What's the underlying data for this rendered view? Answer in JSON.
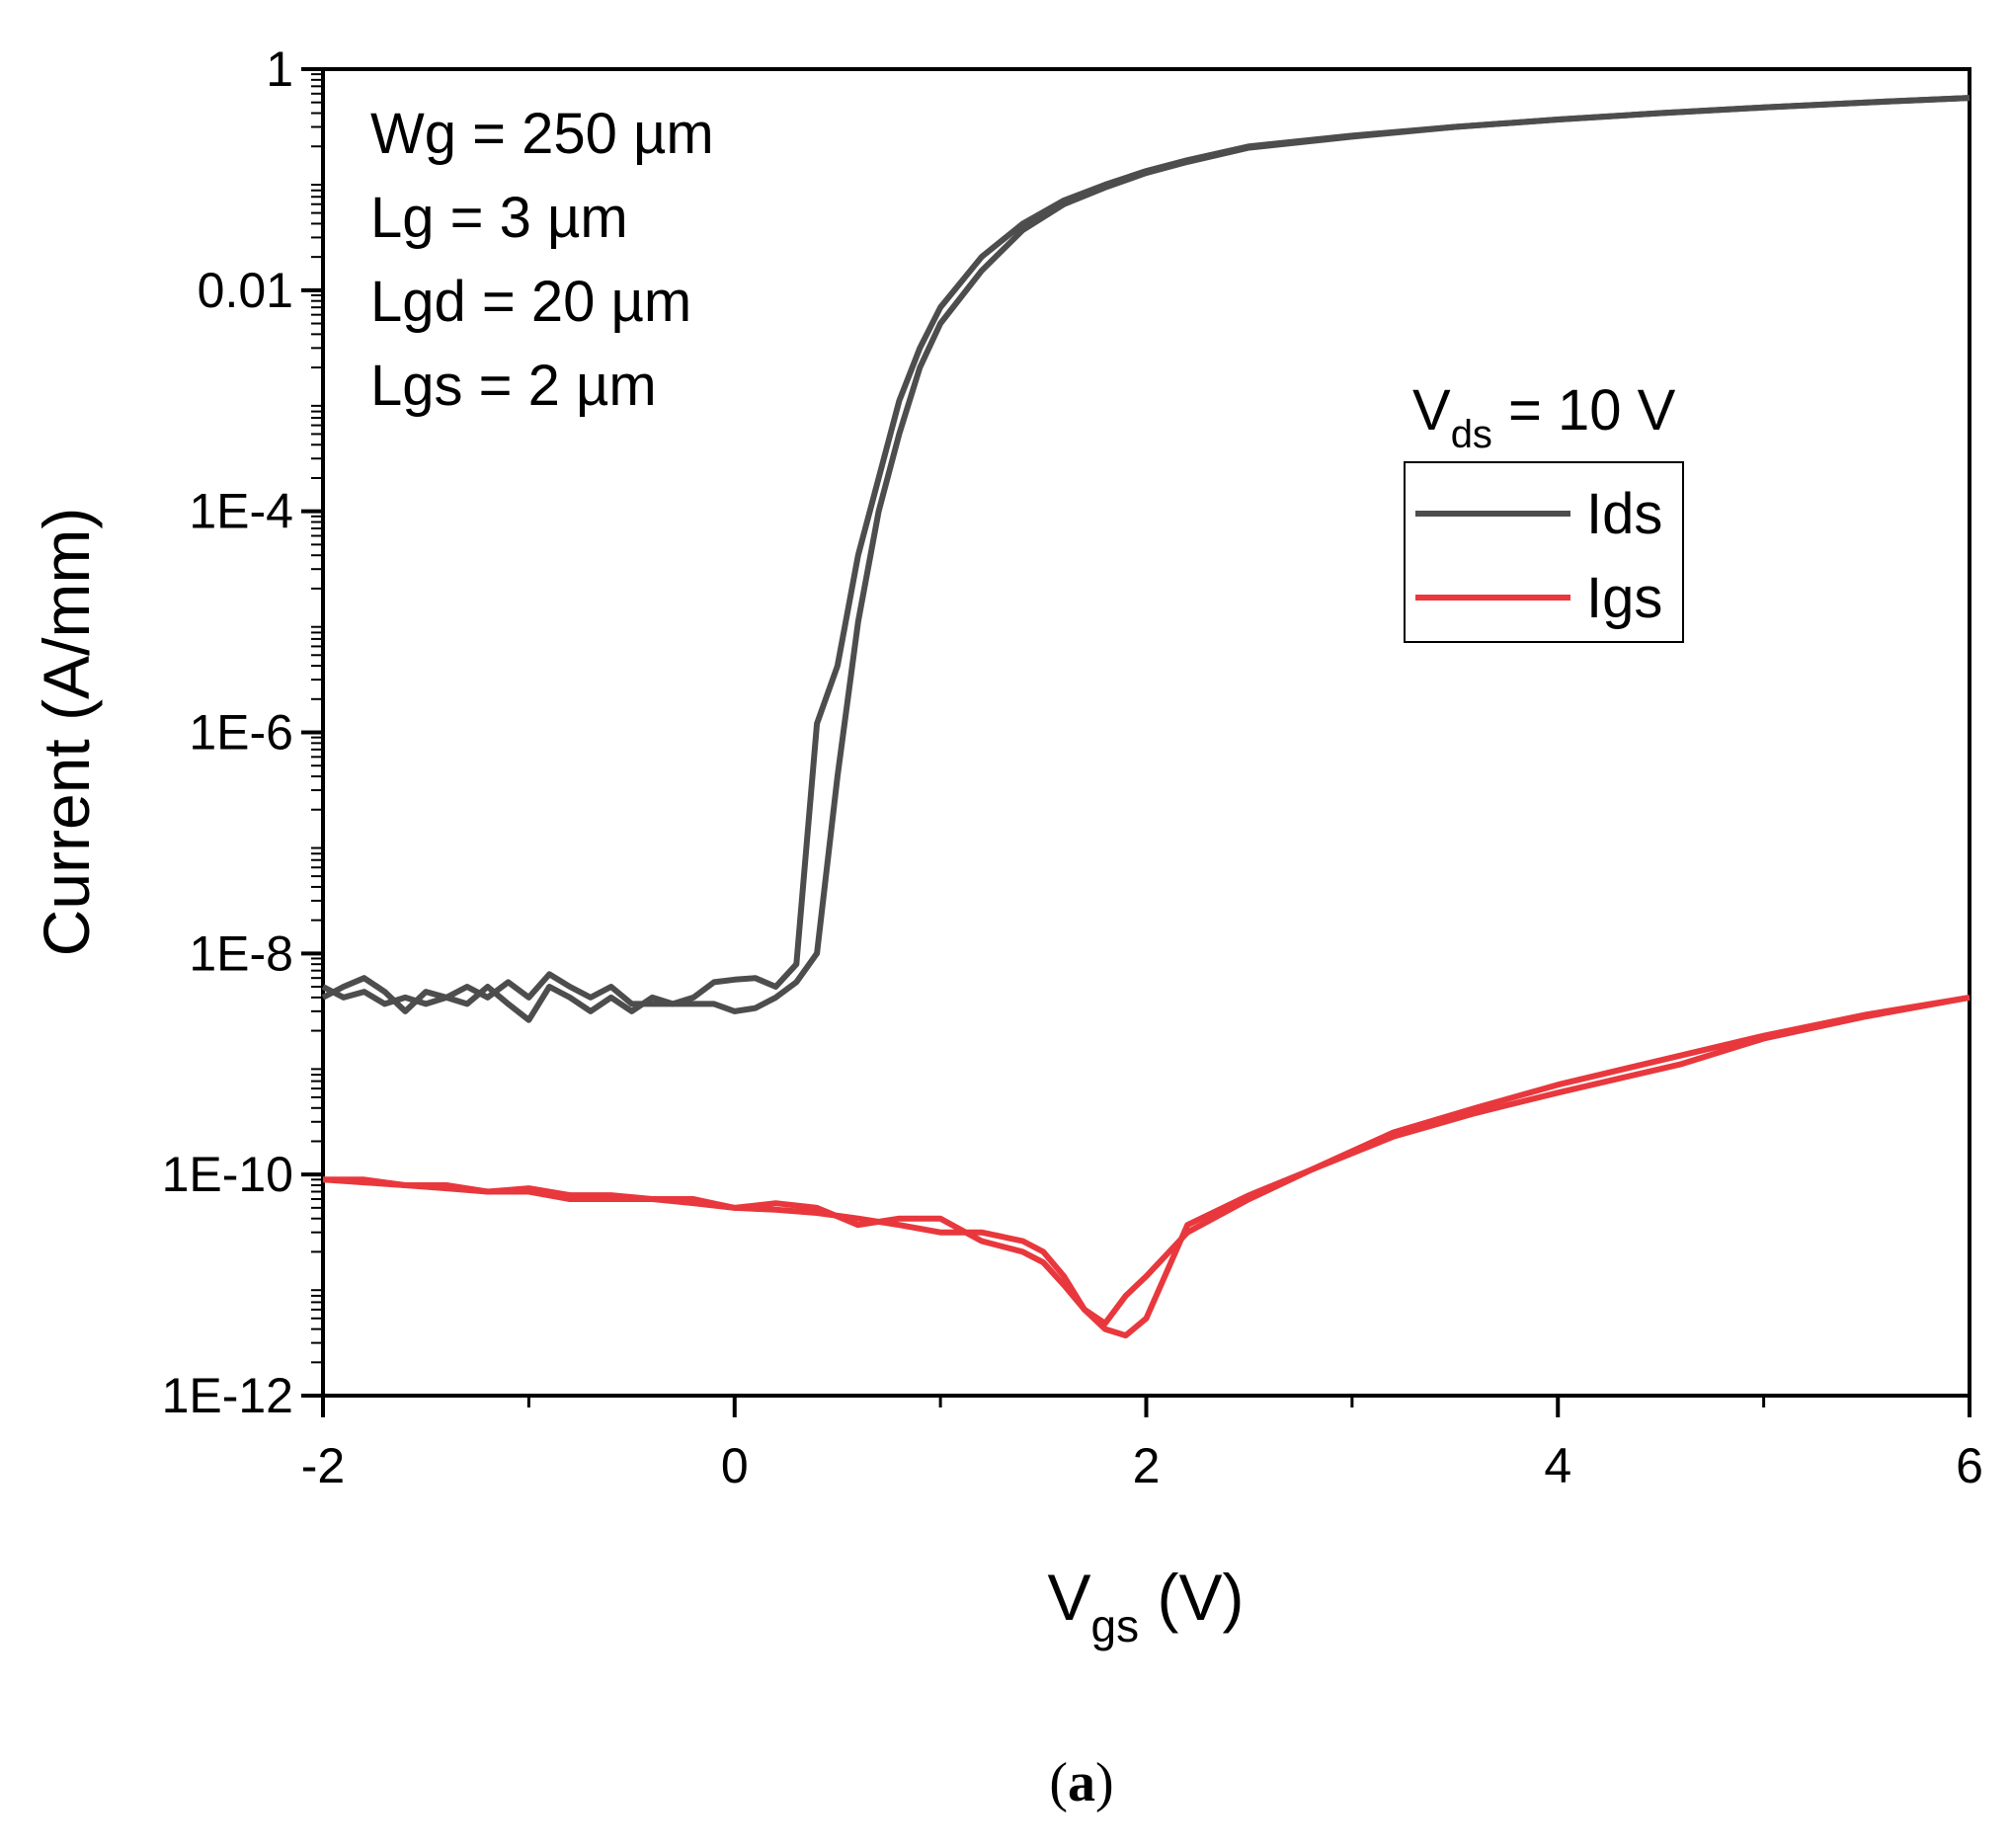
{
  "chart_data": {
    "type": "line",
    "yscale": "log",
    "xlabel_main": "V",
    "xlabel_sub": "gs",
    "xlabel_unit": " (V)",
    "ylabel": "Current (A/mm)",
    "xlim": [
      -2,
      6
    ],
    "ylim": [
      1e-12,
      1
    ],
    "xticks": [
      -2,
      0,
      2,
      4,
      6
    ],
    "xtick_labels": [
      "-2",
      "0",
      "2",
      "4",
      "6"
    ],
    "yticks": [
      1e-12,
      1e-10,
      1e-08,
      1e-06,
      0.0001,
      0.01,
      1
    ],
    "ytick_labels": [
      "1E-12",
      "1E-10",
      "1E-8",
      "1E-6",
      "1E-4",
      "0.01",
      "1"
    ],
    "annotations": [
      "Wg = 250 µm",
      "Lg = 3 µm",
      "Lgd = 20 µm",
      "Lgs = 2 µm"
    ],
    "condition": {
      "main": "V",
      "sub": "ds",
      "rest": " = 10 V"
    },
    "legend_position": "right",
    "series": [
      {
        "name": "Ids",
        "color": "#4d4d4d",
        "sweeps": [
          {
            "x": [
              -2.0,
              -1.9,
              -1.8,
              -1.7,
              -1.6,
              -1.5,
              -1.4,
              -1.3,
              -1.2,
              -1.1,
              -1.0,
              -0.9,
              -0.8,
              -0.7,
              -0.6,
              -0.5,
              -0.4,
              -0.3,
              -0.2,
              -0.1,
              0.0,
              0.1,
              0.2,
              0.3,
              0.4,
              0.5,
              0.6,
              0.7,
              0.8,
              0.9,
              1.0,
              1.2,
              1.4,
              1.6,
              1.8,
              2.0,
              2.2,
              2.5,
              3.0,
              3.5,
              4.0,
              4.5,
              5.0,
              5.5,
              6.0
            ],
            "y": [
              4e-09,
              5e-09,
              6e-09,
              4.5e-09,
              3e-09,
              4.5e-09,
              4e-09,
              5e-09,
              4e-09,
              5.5e-09,
              4e-09,
              6.5e-09,
              5e-09,
              4e-09,
              5e-09,
              3.5e-09,
              3.5e-09,
              3.5e-09,
              4e-09,
              5.5e-09,
              5.8e-09,
              6e-09,
              5e-09,
              8e-09,
              1.2e-06,
              4e-06,
              4e-05,
              0.0002,
              0.001,
              0.003,
              0.007,
              0.02,
              0.04,
              0.065,
              0.09,
              0.12,
              0.15,
              0.2,
              0.25,
              0.3,
              0.35,
              0.4,
              0.45,
              0.5,
              0.55
            ]
          },
          {
            "x": [
              -2.0,
              -1.9,
              -1.8,
              -1.7,
              -1.6,
              -1.5,
              -1.4,
              -1.3,
              -1.2,
              -1.1,
              -1.0,
              -0.9,
              -0.8,
              -0.7,
              -0.6,
              -0.5,
              -0.4,
              -0.3,
              -0.2,
              -0.1,
              0.0,
              0.1,
              0.2,
              0.3,
              0.4,
              0.5,
              0.6,
              0.7,
              0.8,
              0.9,
              1.0,
              1.2,
              1.4,
              1.6,
              1.8,
              2.0,
              2.2,
              2.5,
              3.0,
              3.5,
              4.0,
              4.5,
              5.0,
              5.5,
              6.0
            ],
            "y": [
              5e-09,
              4e-09,
              4.5e-09,
              3.5e-09,
              4e-09,
              3.5e-09,
              4e-09,
              3.5e-09,
              5e-09,
              3.5e-09,
              2.5e-09,
              5e-09,
              4e-09,
              3e-09,
              4e-09,
              3e-09,
              4e-09,
              3.5e-09,
              3.5e-09,
              3.5e-09,
              3e-09,
              3.2e-09,
              4e-09,
              5.5e-09,
              1e-08,
              4e-07,
              1e-05,
              0.0001,
              0.0005,
              0.002,
              0.005,
              0.015,
              0.035,
              0.06,
              0.085,
              0.115,
              0.145,
              0.195,
              0.245,
              0.3,
              0.35,
              0.4,
              0.45,
              0.5,
              0.55
            ]
          }
        ]
      },
      {
        "name": "Igs",
        "color": "#e8383d",
        "sweeps": [
          {
            "x": [
              -2.0,
              -1.8,
              -1.6,
              -1.4,
              -1.2,
              -1.0,
              -0.8,
              -0.6,
              -0.4,
              -0.2,
              0.0,
              0.2,
              0.4,
              0.6,
              0.8,
              1.0,
              1.2,
              1.4,
              1.5,
              1.6,
              1.7,
              1.8,
              1.9,
              2.0,
              2.2,
              2.5,
              2.8,
              3.2,
              3.6,
              4.0,
              4.6,
              5.0,
              5.5,
              6.0
            ],
            "y": [
              9e-11,
              9e-11,
              8e-11,
              7.5e-11,
              7e-11,
              7e-11,
              6e-11,
              6e-11,
              6e-11,
              5.5e-11,
              5e-11,
              4.8e-11,
              4.5e-11,
              4e-11,
              3.5e-11,
              3e-11,
              3e-11,
              2.5e-11,
              2e-11,
              1.2e-11,
              6e-12,
              4.5e-12,
              8e-12,
              1.2e-11,
              3e-11,
              6e-11,
              1.1e-10,
              2.4e-10,
              4e-10,
              6.5e-10,
              1.2e-09,
              1.8e-09,
              2.8e-09,
              4e-09
            ]
          },
          {
            "x": [
              -2.0,
              -1.8,
              -1.6,
              -1.4,
              -1.2,
              -1.0,
              -0.8,
              -0.6,
              -0.4,
              -0.2,
              0.0,
              0.2,
              0.4,
              0.6,
              0.8,
              1.0,
              1.2,
              1.4,
              1.5,
              1.6,
              1.7,
              1.8,
              1.9,
              2.0,
              2.2,
              2.5,
              2.8,
              3.2,
              3.6,
              4.0,
              4.6,
              5.0,
              5.5,
              6.0
            ],
            "y": [
              9e-11,
              8.5e-11,
              8e-11,
              8e-11,
              7e-11,
              7.5e-11,
              6.5e-11,
              6.5e-11,
              6e-11,
              6e-11,
              5e-11,
              5.5e-11,
              5e-11,
              3.5e-11,
              4e-11,
              4e-11,
              2.5e-11,
              2e-11,
              1.6e-11,
              1e-11,
              6e-12,
              4e-12,
              3.5e-12,
              5e-12,
              3.5e-11,
              6.5e-11,
              1.1e-10,
              2.2e-10,
              3.6e-10,
              5.5e-10,
              1e-09,
              1.7e-09,
              2.7e-09,
              4e-09
            ]
          }
        ]
      }
    ]
  },
  "caption": {
    "open": "(",
    "letter": "a",
    "close": ")"
  }
}
